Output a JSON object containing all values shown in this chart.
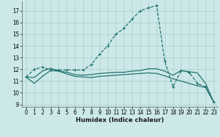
{
  "title": "",
  "xlabel": "Humidex (Indice chaleur)",
  "bg_color": "#cce8e8",
  "grid_color": "#aacccc",
  "line_color": "#1a6e6a",
  "xlim": [
    -0.5,
    23.5
  ],
  "ylim": [
    8.8,
    17.8
  ],
  "yticks": [
    9,
    10,
    11,
    12,
    13,
    14,
    15,
    16,
    17
  ],
  "xticks": [
    0,
    1,
    2,
    3,
    4,
    5,
    6,
    7,
    8,
    9,
    10,
    11,
    12,
    13,
    14,
    15,
    16,
    17,
    18,
    19,
    20,
    21,
    22,
    23
  ],
  "curve1_x": [
    0,
    1,
    2,
    3,
    4,
    5,
    6,
    7,
    8,
    9,
    10,
    11,
    12,
    13,
    14,
    15,
    16,
    17,
    18,
    19,
    20,
    21,
    22,
    23
  ],
  "curve1_y": [
    11.35,
    12.0,
    12.2,
    11.95,
    11.95,
    11.95,
    11.95,
    11.95,
    12.4,
    13.3,
    14.0,
    15.0,
    15.5,
    16.3,
    17.0,
    17.25,
    17.45,
    12.7,
    10.5,
    11.9,
    11.75,
    10.8,
    10.5,
    9.2
  ],
  "curve2_x": [
    0,
    1,
    2,
    3,
    4,
    5,
    6,
    7,
    8,
    9,
    10,
    11,
    12,
    13,
    14,
    15,
    16,
    17,
    18,
    19,
    20,
    21,
    22,
    23
  ],
  "curve2_y": [
    11.35,
    10.8,
    11.4,
    11.9,
    11.85,
    11.6,
    11.4,
    11.35,
    11.3,
    11.4,
    11.45,
    11.5,
    11.55,
    11.6,
    11.65,
    11.7,
    11.65,
    11.45,
    11.2,
    11.0,
    10.8,
    10.6,
    10.45,
    9.2
  ],
  "curve3_x": [
    0,
    1,
    2,
    3,
    4,
    5,
    6,
    7,
    8,
    9,
    10,
    11,
    12,
    13,
    14,
    15,
    16,
    17,
    18,
    19,
    20,
    21,
    22,
    23
  ],
  "curve3_y": [
    11.35,
    11.3,
    11.85,
    12.1,
    11.85,
    11.75,
    11.55,
    11.5,
    11.55,
    11.65,
    11.7,
    11.75,
    11.75,
    11.85,
    11.9,
    12.05,
    12.05,
    11.85,
    11.5,
    11.9,
    11.8,
    11.7,
    10.8,
    9.2
  ]
}
